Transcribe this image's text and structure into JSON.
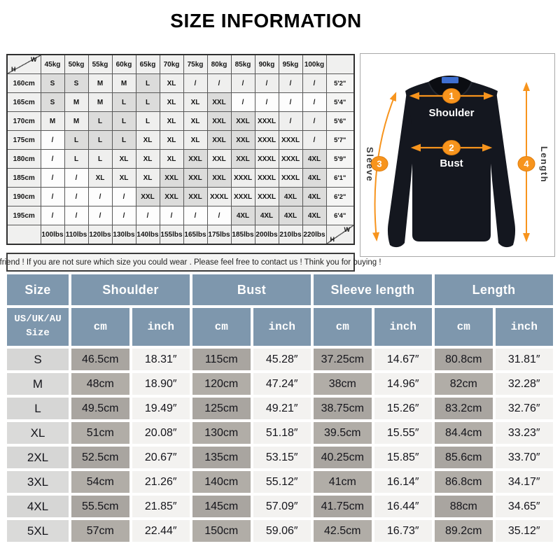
{
  "title": "SIZE INFORMATION",
  "note": "Dear friend ! If you are not sure which size you could wear . Please feel free to contact us ! Think you for buying !",
  "weight_height_table": {
    "corner_w": "W",
    "corner_h": "H",
    "weights": [
      "45kg",
      "50kg",
      "55kg",
      "60kg",
      "65kg",
      "70kg",
      "75kg",
      "80kg",
      "85kg",
      "90kg",
      "95kg",
      "100kg"
    ],
    "rows": [
      {
        "height": "160cm",
        "ft": "5'2\"",
        "cells": [
          "S",
          "S",
          "M",
          "M",
          "L",
          "XL",
          "/",
          "/",
          "/",
          "/",
          "/",
          "/"
        ],
        "shades": [
          2,
          2,
          1,
          1,
          2,
          1,
          1,
          1,
          1,
          1,
          1,
          1
        ]
      },
      {
        "height": "165cm",
        "ft": "5'4\"",
        "cells": [
          "S",
          "M",
          "M",
          "L",
          "L",
          "XL",
          "XL",
          "XXL",
          "/",
          "/",
          "/",
          "/"
        ],
        "shades": [
          2,
          1,
          1,
          2,
          2,
          1,
          1,
          2,
          0,
          0,
          0,
          0
        ]
      },
      {
        "height": "170cm",
        "ft": "5'6\"",
        "cells": [
          "M",
          "M",
          "L",
          "L",
          "L",
          "XL",
          "XL",
          "XXL",
          "XXL",
          "XXXL",
          "/",
          "/"
        ],
        "shades": [
          1,
          1,
          2,
          2,
          1,
          1,
          1,
          2,
          2,
          1,
          1,
          1
        ]
      },
      {
        "height": "175cm",
        "ft": "5'7\"",
        "cells": [
          "/",
          "L",
          "L",
          "L",
          "XL",
          "XL",
          "XL",
          "XXL",
          "XXL",
          "XXXL",
          "XXXL",
          "/"
        ],
        "shades": [
          0,
          2,
          2,
          2,
          1,
          1,
          1,
          2,
          2,
          1,
          1,
          1
        ]
      },
      {
        "height": "180cm",
        "ft": "5'9\"",
        "cells": [
          "/",
          "L",
          "L",
          "XL",
          "XL",
          "XL",
          "XXL",
          "XXL",
          "XXL",
          "XXXL",
          "XXXL",
          "4XL"
        ],
        "shades": [
          0,
          1,
          1,
          1,
          1,
          1,
          2,
          1,
          2,
          1,
          1,
          2
        ]
      },
      {
        "height": "185cm",
        "ft": "6'1\"",
        "cells": [
          "/",
          "/",
          "XL",
          "XL",
          "XL",
          "XXL",
          "XXL",
          "XXL",
          "XXXL",
          "XXXL",
          "XXXL",
          "4XL"
        ],
        "shades": [
          0,
          0,
          1,
          1,
          1,
          2,
          2,
          2,
          1,
          1,
          1,
          2
        ]
      },
      {
        "height": "190cm",
        "ft": "6'2\"",
        "cells": [
          "/",
          "/",
          "/",
          "/",
          "XXL",
          "XXL",
          "XXL",
          "XXXL",
          "XXXL",
          "XXXL",
          "4XL",
          "4XL"
        ],
        "shades": [
          0,
          0,
          0,
          0,
          2,
          2,
          2,
          1,
          1,
          1,
          2,
          2
        ]
      },
      {
        "height": "195cm",
        "ft": "6'4\"",
        "cells": [
          "/",
          "/",
          "/",
          "/",
          "/",
          "/",
          "/",
          "/",
          "4XL",
          "4XL",
          "4XL",
          "4XL"
        ],
        "shades": [
          0,
          0,
          0,
          0,
          0,
          0,
          0,
          0,
          2,
          2,
          2,
          2
        ]
      }
    ],
    "lbs": [
      "100lbs",
      "110lbs",
      "120lbs",
      "130lbs",
      "140lbs",
      "155lbs",
      "165lbs",
      "175lbs",
      "185lbs",
      "200lbs",
      "210lbs",
      "220lbs"
    ]
  },
  "diagram": {
    "measurements": [
      {
        "num": "1",
        "label": "Shoulder"
      },
      {
        "num": "2",
        "label": "Bust"
      },
      {
        "num": "3",
        "label": "Sleeve"
      },
      {
        "num": "4",
        "label": "Length"
      }
    ],
    "arrow_color": "#f7941d",
    "shirt_color": "#14171f",
    "collar_tag_color": "#3f6fd0"
  },
  "size_table": {
    "col_headers": [
      "Size",
      "Shoulder",
      "Bust",
      "Sleeve length",
      "Length"
    ],
    "sub_header": "US/UK/AU\nSize",
    "unit_cm": "cm",
    "unit_inch": "inch",
    "header_bg": "#7e97ad",
    "rows": [
      {
        "size": "S",
        "shoulder_cm": "46.5cm",
        "shoulder_in": "18.31″",
        "bust_cm": "115cm",
        "bust_in": "45.28″",
        "sleeve_cm": "37.25cm",
        "sleeve_in": "14.67″",
        "length_cm": "80.8cm",
        "length_in": "31.81″"
      },
      {
        "size": "M",
        "shoulder_cm": "48cm",
        "shoulder_in": "18.90″",
        "bust_cm": "120cm",
        "bust_in": "47.24″",
        "sleeve_cm": "38cm",
        "sleeve_in": "14.96″",
        "length_cm": "82cm",
        "length_in": "32.28″"
      },
      {
        "size": "L",
        "shoulder_cm": "49.5cm",
        "shoulder_in": "19.49″",
        "bust_cm": "125cm",
        "bust_in": "49.21″",
        "sleeve_cm": "38.75cm",
        "sleeve_in": "15.26″",
        "length_cm": "83.2cm",
        "length_in": "32.76″"
      },
      {
        "size": "XL",
        "shoulder_cm": "51cm",
        "shoulder_in": "20.08″",
        "bust_cm": "130cm",
        "bust_in": "51.18″",
        "sleeve_cm": "39.5cm",
        "sleeve_in": "15.55″",
        "length_cm": "84.4cm",
        "length_in": "33.23″"
      },
      {
        "size": "2XL",
        "shoulder_cm": "52.5cm",
        "shoulder_in": "20.67″",
        "bust_cm": "135cm",
        "bust_in": "53.15″",
        "sleeve_cm": "40.25cm",
        "sleeve_in": "15.85″",
        "length_cm": "85.6cm",
        "length_in": "33.70″"
      },
      {
        "size": "3XL",
        "shoulder_cm": "54cm",
        "shoulder_in": "21.26″",
        "bust_cm": "140cm",
        "bust_in": "55.12″",
        "sleeve_cm": "41cm",
        "sleeve_in": "16.14″",
        "length_cm": "86.8cm",
        "length_in": "34.17″"
      },
      {
        "size": "4XL",
        "shoulder_cm": "55.5cm",
        "shoulder_in": "21.85″",
        "bust_cm": "145cm",
        "bust_in": "57.09″",
        "sleeve_cm": "41.75cm",
        "sleeve_in": "16.44″",
        "length_cm": "88cm",
        "length_in": "34.65″"
      },
      {
        "size": "5XL",
        "shoulder_cm": "57cm",
        "shoulder_in": "22.44″",
        "bust_cm": "150cm",
        "bust_in": "59.06″",
        "sleeve_cm": "42.5cm",
        "sleeve_in": "16.73″",
        "length_cm": "89.2cm",
        "length_in": "35.12″"
      }
    ]
  }
}
